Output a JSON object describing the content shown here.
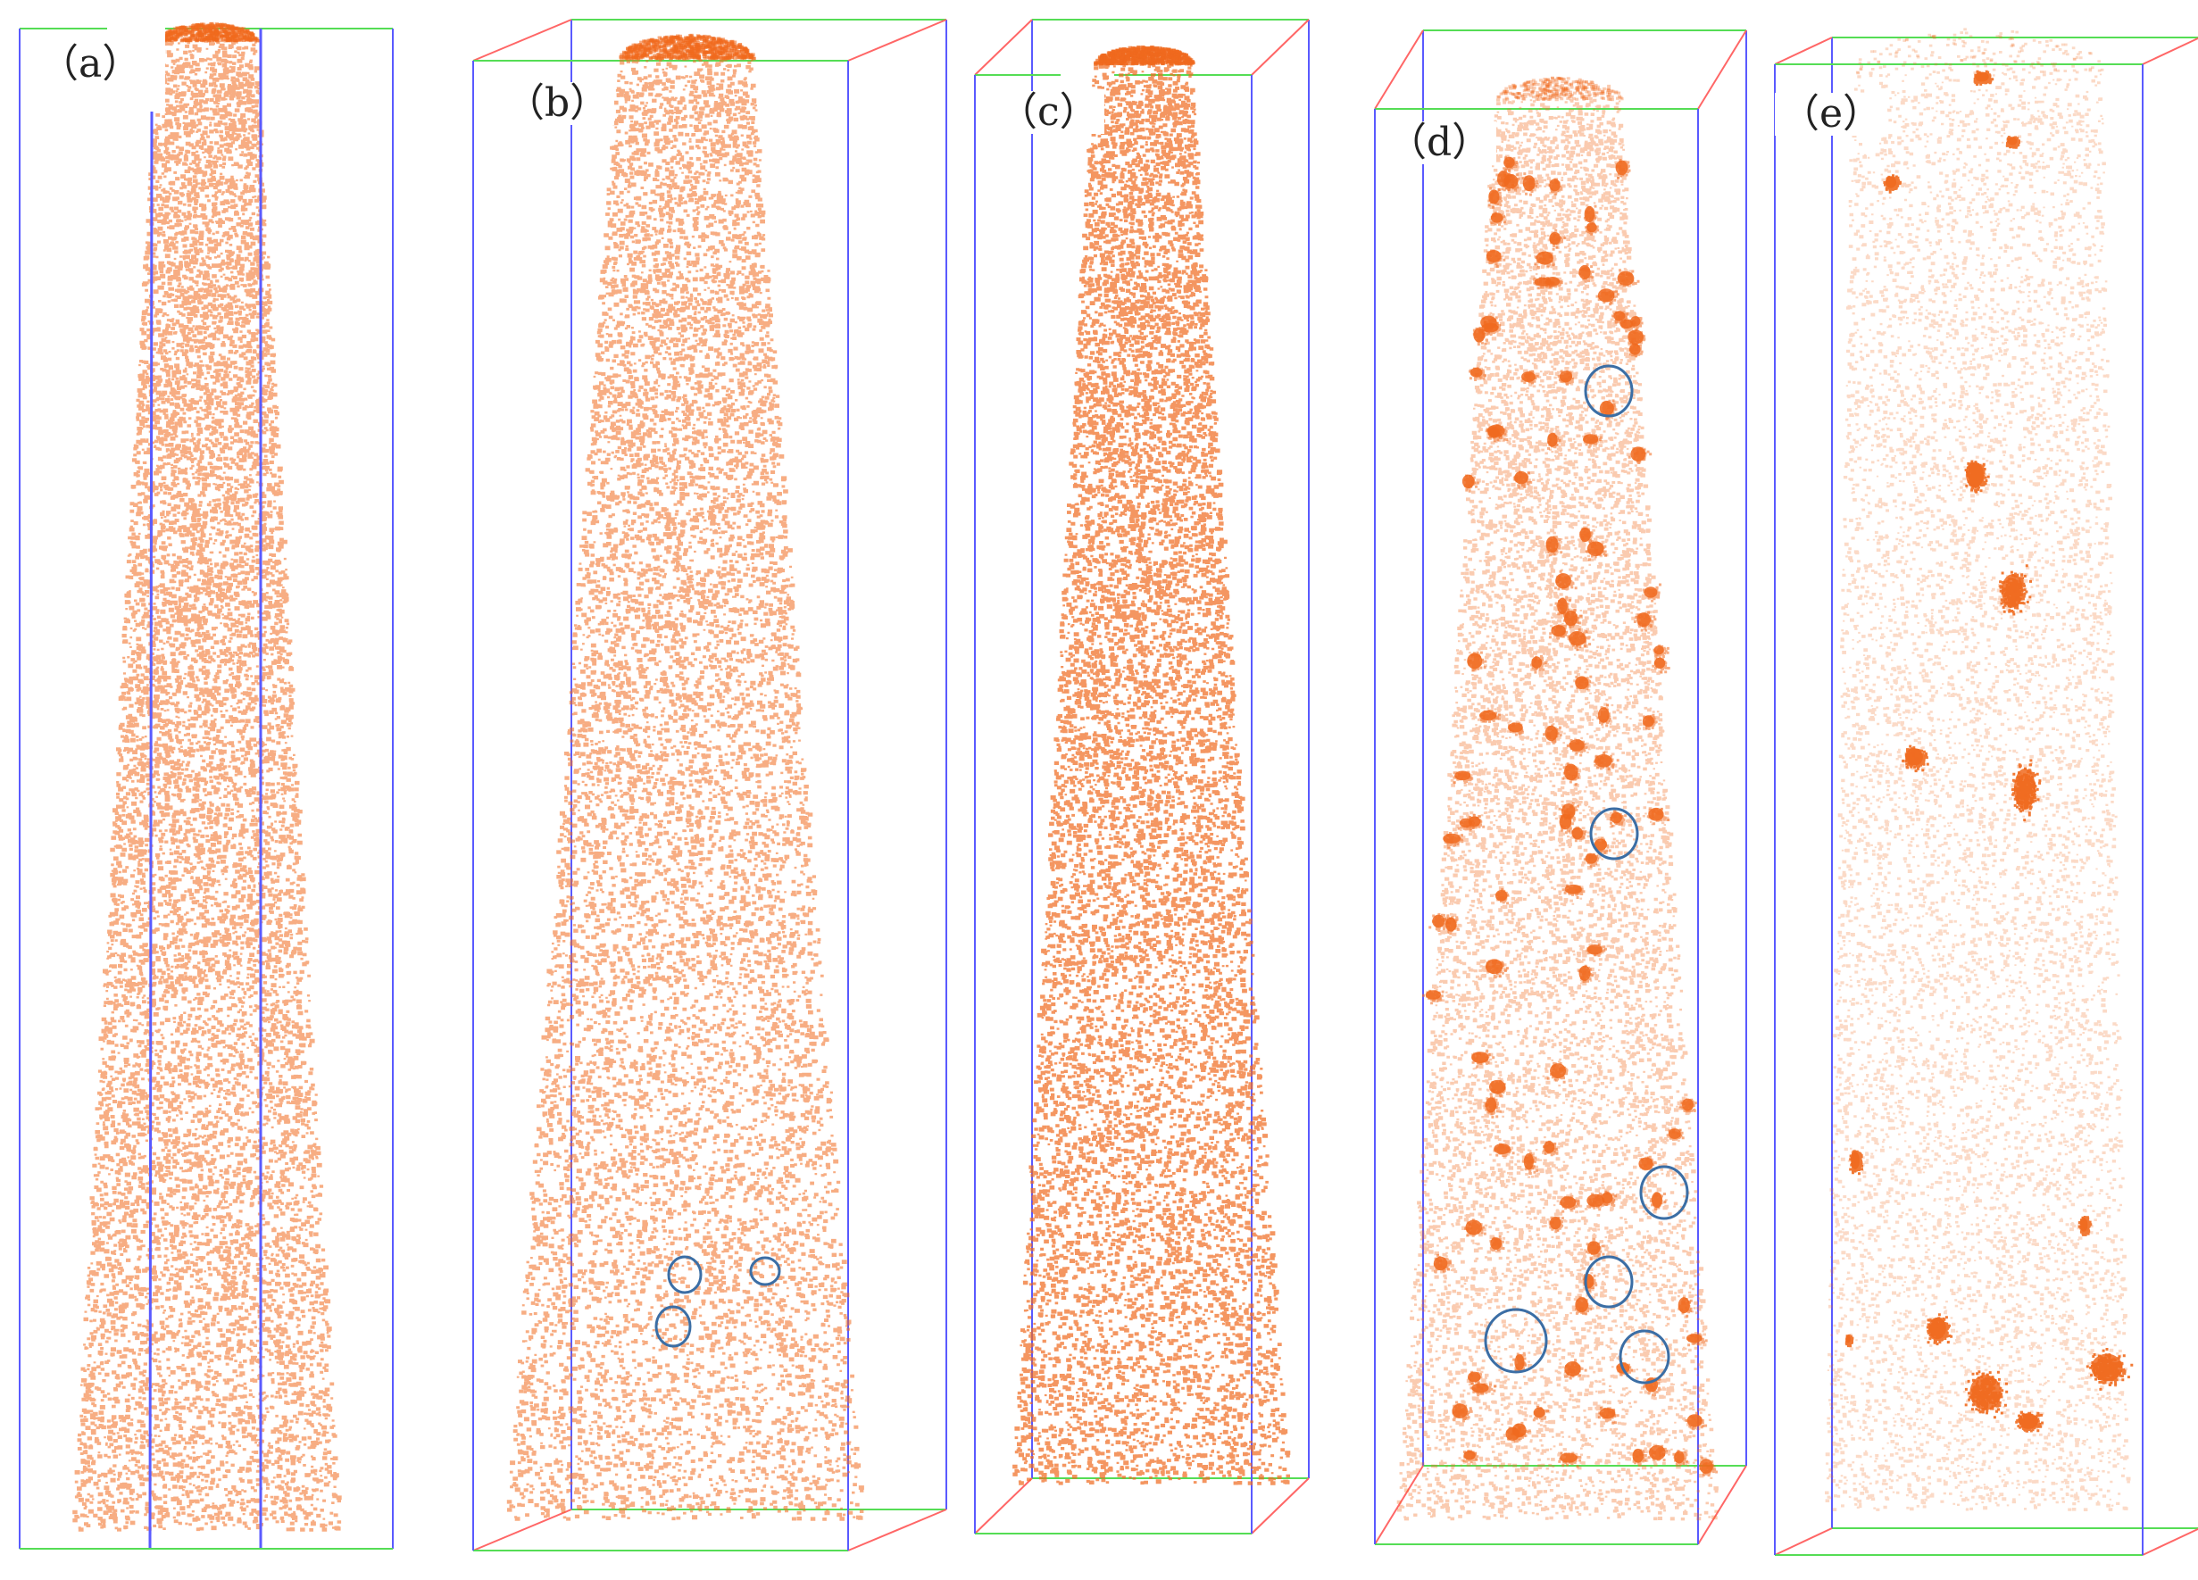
{
  "figure": {
    "background": "#ffffff",
    "point_color": "#f06a1e",
    "cluster_color": "#f06a1e",
    "circle_color": "#3b6ea5",
    "box_colors": {
      "vertical": "#5a5aff",
      "top_bottom": "#55dd55",
      "corner": "#ff6666"
    }
  },
  "panels": [
    {
      "id": "a",
      "label": "（a）"
    },
    {
      "id": "b",
      "label": "（b）"
    },
    {
      "id": "c",
      "label": "（c）"
    },
    {
      "id": "d",
      "label": "（d）"
    },
    {
      "id": "e",
      "label": "（e）"
    }
  ]
}
